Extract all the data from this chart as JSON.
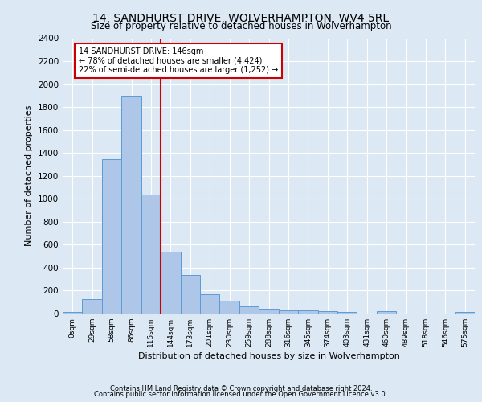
{
  "title": "14, SANDHURST DRIVE, WOLVERHAMPTON, WV4 5RL",
  "subtitle": "Size of property relative to detached houses in Wolverhampton",
  "xlabel": "Distribution of detached houses by size in Wolverhampton",
  "ylabel": "Number of detached properties",
  "bar_labels": [
    "0sqm",
    "29sqm",
    "58sqm",
    "86sqm",
    "115sqm",
    "144sqm",
    "173sqm",
    "201sqm",
    "230sqm",
    "259sqm",
    "288sqm",
    "316sqm",
    "345sqm",
    "374sqm",
    "403sqm",
    "431sqm",
    "460sqm",
    "489sqm",
    "518sqm",
    "546sqm",
    "575sqm"
  ],
  "bar_heights": [
    15,
    125,
    1345,
    1890,
    1040,
    540,
    335,
    170,
    110,
    65,
    40,
    30,
    25,
    20,
    15,
    0,
    20,
    0,
    0,
    0,
    15
  ],
  "bar_color": "#aec6e8",
  "bar_edge_color": "#5b9bd5",
  "vline_x": 4.5,
  "annotation_title": "14 SANDHURST DRIVE: 146sqm",
  "annotation_line1": "← 78% of detached houses are smaller (4,424)",
  "annotation_line2": "22% of semi-detached houses are larger (1,252) →",
  "annotation_box_color": "#cc0000",
  "ylim": [
    0,
    2400
  ],
  "yticks": [
    0,
    200,
    400,
    600,
    800,
    1000,
    1200,
    1400,
    1600,
    1800,
    2000,
    2200,
    2400
  ],
  "footer1": "Contains HM Land Registry data © Crown copyright and database right 2024.",
  "footer2": "Contains public sector information licensed under the Open Government Licence v3.0.",
  "bg_color": "#dce9f5",
  "plot_bg_color": "#dce9f5"
}
